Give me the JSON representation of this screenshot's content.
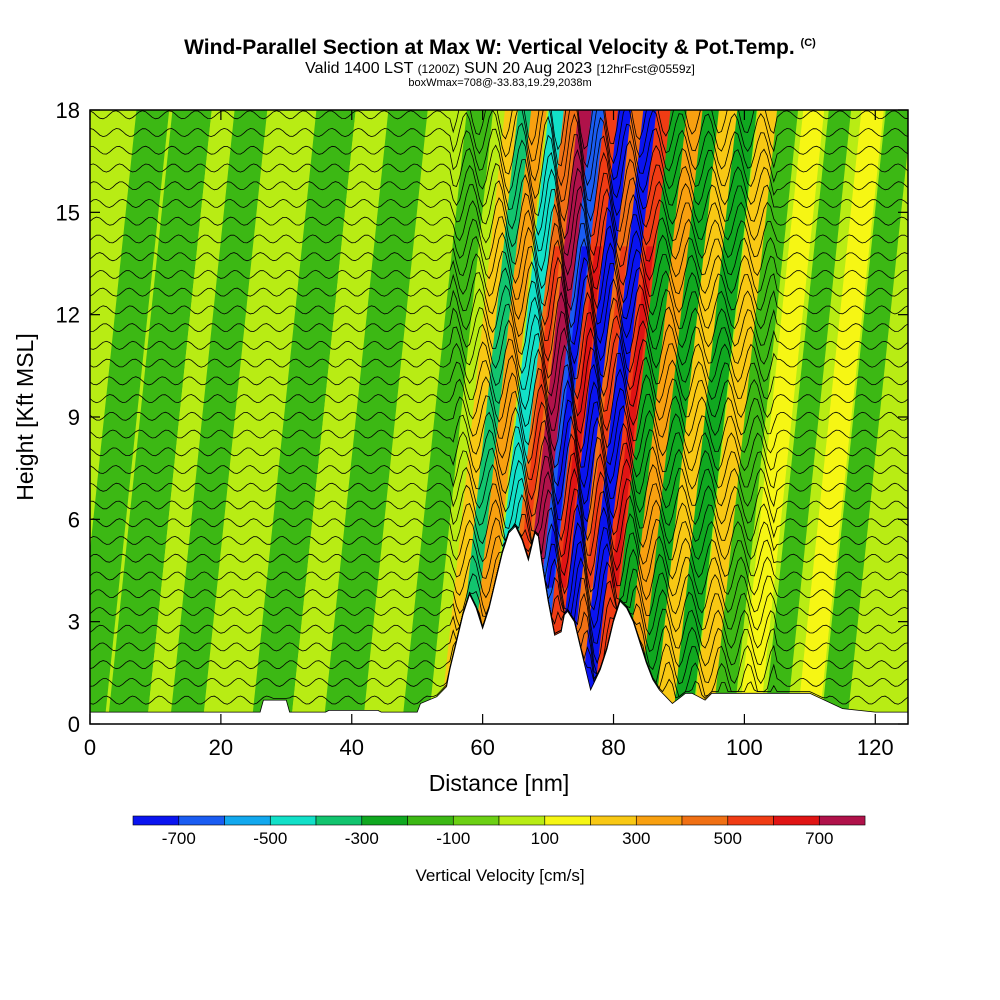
{
  "header": {
    "title": "Wind-Parallel Section at Max W: Vertical Velocity & Pot.Temp.",
    "copyright": "(C)",
    "valid_prefix": "Valid 1400 LST",
    "valid_utc": "(1200Z)",
    "valid_date": "SUN 20 Aug 2023",
    "forecast": "[12hrFcst@0559z]",
    "boxinfo": "boxWmax=708@-33.83,19.29,2038m"
  },
  "chart_data": {
    "type": "heatmap",
    "title": "Wind-Parallel Section at Max W: Vertical Velocity & Pot.Temp.",
    "xlabel": "Distance [nm]",
    "ylabel": "Height [Kft MSL]",
    "xlim": [
      0,
      125
    ],
    "ylim": [
      0,
      18
    ],
    "xticks": [
      0,
      20,
      40,
      60,
      80,
      100,
      120
    ],
    "yticks": [
      0,
      3,
      6,
      9,
      12,
      15,
      18
    ],
    "colorbar": {
      "label": "Vertical Velocity [cm/s]",
      "tick_labels": [
        "-700",
        "-500",
        "-300",
        "-100",
        "100",
        "300",
        "500",
        "700"
      ],
      "tick_values": [
        -700,
        -500,
        -300,
        -100,
        100,
        300,
        500,
        700
      ],
      "levels": [
        -800,
        -700,
        -600,
        -500,
        -400,
        -300,
        -200,
        -100,
        0,
        100,
        200,
        300,
        400,
        500,
        600,
        700,
        800
      ],
      "colors": [
        "#0a14f0",
        "#1a5cf2",
        "#12a8ee",
        "#12e0c8",
        "#12c46e",
        "#10a820",
        "#3cb814",
        "#6cd014",
        "#b8ec14",
        "#f6f614",
        "#f8c814",
        "#f8a010",
        "#f07014",
        "#f03c14",
        "#e01414",
        "#b0124a"
      ]
    },
    "terrain": {
      "x": [
        0,
        26,
        26.5,
        30,
        30.5,
        36,
        36.5,
        44,
        44.5,
        50,
        50.5,
        53,
        54.5,
        55,
        56,
        57,
        58,
        59,
        60,
        61,
        62,
        63,
        64,
        65,
        66,
        67,
        68,
        68.5,
        69,
        70,
        71,
        72,
        72.5,
        73,
        74,
        75,
        76,
        76.5,
        77,
        78,
        79,
        80,
        81,
        82,
        83,
        84,
        85,
        86,
        87,
        88,
        89,
        90,
        91,
        92,
        93,
        94,
        95,
        100,
        105,
        110,
        115,
        120,
        125
      ],
      "h": [
        0.35,
        0.35,
        0.7,
        0.7,
        0.35,
        0.35,
        0.4,
        0.4,
        0.35,
        0.35,
        0.6,
        0.8,
        1.1,
        1.6,
        2.4,
        3.2,
        3.8,
        3.4,
        2.8,
        3.4,
        4.2,
        5.0,
        5.6,
        5.8,
        5.4,
        4.8,
        5.6,
        5.5,
        4.8,
        3.6,
        2.6,
        2.7,
        3.2,
        3.3,
        3.0,
        2.2,
        1.4,
        1.0,
        1.2,
        1.6,
        2.2,
        3.0,
        3.6,
        3.4,
        3.0,
        2.4,
        1.8,
        1.3,
        1.0,
        0.8,
        0.6,
        0.75,
        0.9,
        0.9,
        0.8,
        0.7,
        0.9,
        0.9,
        0.9,
        0.9,
        0.45,
        0.35,
        0.35
      ]
    },
    "bands": [
      {
        "x": 3,
        "w": 2.5,
        "v": -150
      },
      {
        "x": 9,
        "w": 3,
        "v": -150
      },
      {
        "x": 14,
        "w": 2,
        "v": 60
      },
      {
        "x": 18,
        "w": 2.5,
        "v": -120
      },
      {
        "x": 25,
        "w": 2.5,
        "v": 60
      },
      {
        "x": 31,
        "w": 3,
        "v": -150
      },
      {
        "x": 36,
        "w": 2,
        "v": 60
      },
      {
        "x": 42,
        "w": 3,
        "v": -150
      },
      {
        "x": 48,
        "w": 2.5,
        "v": 60
      },
      {
        "x": 53,
        "w": 2,
        "v": -150
      },
      {
        "x": 58,
        "w": 1.2,
        "v": 260
      },
      {
        "x": 60,
        "w": 1.2,
        "v": -320
      },
      {
        "x": 62,
        "w": 1.2,
        "v": 340
      },
      {
        "x": 64.8,
        "w": 1.3,
        "v": -420
      },
      {
        "x": 67,
        "w": 1.2,
        "v": 460
      },
      {
        "x": 69.3,
        "w": 1.25,
        "v": 720
      },
      {
        "x": 71.3,
        "w": 1.25,
        "v": -700
      },
      {
        "x": 73.3,
        "w": 1.25,
        "v": 560
      },
      {
        "x": 75.3,
        "w": 1.2,
        "v": -740
      },
      {
        "x": 77.3,
        "w": 1.2,
        "v": 480
      },
      {
        "x": 79.2,
        "w": 1.25,
        "v": -760
      },
      {
        "x": 81.2,
        "w": 1.25,
        "v": 500
      },
      {
        "x": 83.4,
        "w": 1.3,
        "v": -300
      },
      {
        "x": 86,
        "w": 1.4,
        "v": 320
      },
      {
        "x": 88.4,
        "w": 1.4,
        "v": -250
      },
      {
        "x": 91,
        "w": 1.5,
        "v": 220
      },
      {
        "x": 93.8,
        "w": 1.5,
        "v": -220
      },
      {
        "x": 97,
        "w": 1.5,
        "v": 220
      },
      {
        "x": 100,
        "w": 1.6,
        "v": -200
      },
      {
        "x": 104,
        "w": 1.6,
        "v": 180
      },
      {
        "x": 108,
        "w": 1.7,
        "v": -190
      },
      {
        "x": 113,
        "w": 1.7,
        "v": 150
      },
      {
        "x": 117,
        "w": 2,
        "v": -150
      },
      {
        "x": 122,
        "w": 2,
        "v": 60
      }
    ]
  }
}
